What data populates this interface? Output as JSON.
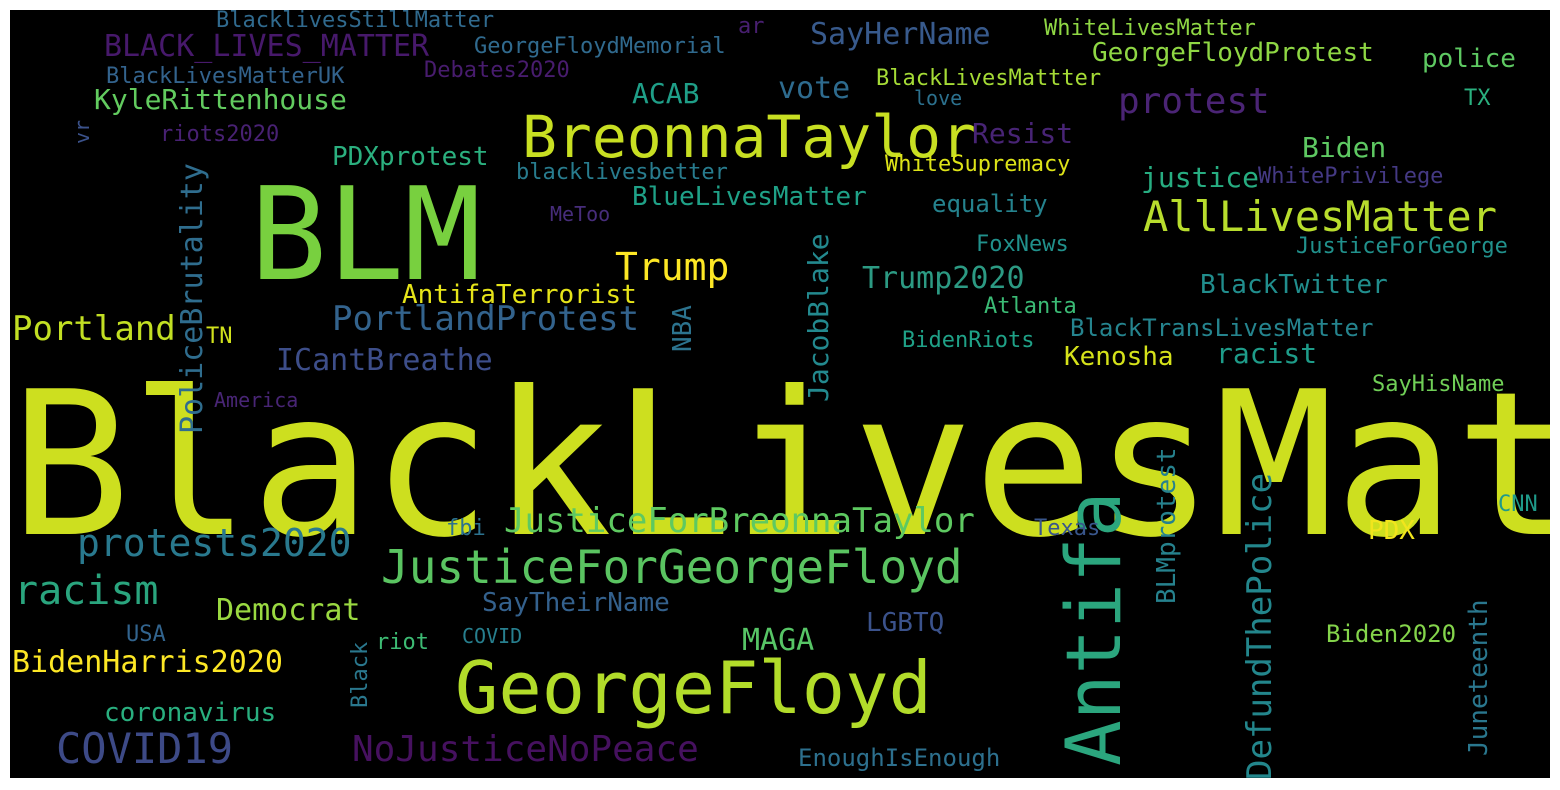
{
  "background": "#000000",
  "words": [
    {
      "text": "BlackLivesMatter",
      "color": "#cddf1f"
    },
    {
      "text": "BLM",
      "color": "#78d03f"
    },
    {
      "text": "GeorgeFloyd",
      "color": "#b2dc2a"
    },
    {
      "text": "BreonnaTaylor",
      "color": "#c8df22"
    },
    {
      "text": "Antifa",
      "color": "#2ba67e"
    },
    {
      "text": "JusticeForGeorgeFloyd",
      "color": "#5ac461"
    },
    {
      "text": "AllLivesMatter",
      "color": "#b8dd2d"
    },
    {
      "text": "NoJusticeNoPeace",
      "color": "#46115f"
    },
    {
      "text": "COVID19",
      "color": "#3d4a87"
    },
    {
      "text": "DefundThePolice",
      "color": "#23868c"
    },
    {
      "text": "JusticeForBreonnaTaylor",
      "color": "#5ec961"
    },
    {
      "text": "protests2020",
      "color": "#29798e"
    },
    {
      "text": "racism",
      "color": "#2aa57e"
    },
    {
      "text": "Trump",
      "color": "#fde725"
    },
    {
      "text": "PortlandProtest",
      "color": "#33638d"
    },
    {
      "text": "Portland",
      "color": "#c2df23"
    },
    {
      "text": "PoliceBrutality",
      "color": "#2f6d8e"
    },
    {
      "text": "protest",
      "color": "#4b2475"
    },
    {
      "text": "BLACK_LIVES_MATTER",
      "color": "#47196b"
    },
    {
      "text": "SayHerName",
      "color": "#385a8c"
    },
    {
      "text": "GeorgeFloydProtest",
      "color": "#8fd744"
    },
    {
      "text": "KyleRittenhouse",
      "color": "#62cb5f"
    },
    {
      "text": "ICantBreathe",
      "color": "#3d4e8a"
    },
    {
      "text": "JacobBlake",
      "color": "#23898e"
    },
    {
      "text": "Trump2020",
      "color": "#2c9a83"
    },
    {
      "text": "MAGA",
      "color": "#57c566"
    },
    {
      "text": "Democrat",
      "color": "#9ad941"
    },
    {
      "text": "BidenHarris2020",
      "color": "#fde725"
    },
    {
      "text": "vote",
      "color": "#2e6b8e"
    },
    {
      "text": "ACAB",
      "color": "#1f9f88"
    },
    {
      "text": "Resist",
      "color": "#482475"
    },
    {
      "text": "justice",
      "color": "#27ad81"
    },
    {
      "text": "Biden",
      "color": "#5ec962"
    },
    {
      "text": "BlueLivesMatter",
      "color": "#1fa187"
    },
    {
      "text": "AntifaTerrorist",
      "color": "#e6e419"
    },
    {
      "text": "PDXprotest",
      "color": "#2bb07f"
    },
    {
      "text": "BLMprotest",
      "color": "#26828e"
    },
    {
      "text": "Juneteenth",
      "color": "#2a778e"
    },
    {
      "text": "coronavirus",
      "color": "#29af7f"
    },
    {
      "text": "SayTheirName",
      "color": "#34618d"
    },
    {
      "text": "Kenosha",
      "color": "#d5e21a"
    },
    {
      "text": "racist",
      "color": "#1e9c89"
    },
    {
      "text": "BlackTwitter",
      "color": "#218e8d"
    },
    {
      "text": "BlackTransLivesMatter",
      "color": "#25848e"
    },
    {
      "text": "NBA",
      "color": "#2c738e"
    },
    {
      "text": "LGBTQ",
      "color": "#3b528b"
    },
    {
      "text": "PDX",
      "color": "#f1e51d"
    },
    {
      "text": "equality",
      "color": "#25838e"
    },
    {
      "text": "FoxNews",
      "color": "#21918c"
    },
    {
      "text": "BidenRiots",
      "color": "#1fa187"
    },
    {
      "text": "EnoughIsEnough",
      "color": "#2d708e"
    },
    {
      "text": "Biden2020",
      "color": "#84d44b"
    },
    {
      "text": "WhiteSupremacy",
      "color": "#dde318"
    },
    {
      "text": "BlackLivesMattter",
      "color": "#a5db36"
    },
    {
      "text": "WhiteLivesMatter",
      "color": "#8fd744"
    },
    {
      "text": "GeorgeFloydMemorial",
      "color": "#306a8e"
    },
    {
      "text": "BlacklivesStillMatter",
      "color": "#306a8e"
    },
    {
      "text": "BlackLivesMatterUK",
      "color": "#33638d"
    },
    {
      "text": "Debates2020",
      "color": "#481c6e"
    },
    {
      "text": "police",
      "color": "#5ec962"
    },
    {
      "text": "TX",
      "color": "#2ab07f"
    },
    {
      "text": "Texas",
      "color": "#39568c"
    },
    {
      "text": "CNN",
      "color": "#1f9a8a"
    },
    {
      "text": "SayHisName",
      "color": "#70cf57"
    },
    {
      "text": "JusticeForGeorge",
      "color": "#21918c"
    },
    {
      "text": "WhitePrivilege",
      "color": "#443983"
    },
    {
      "text": "Atlanta",
      "color": "#3bbb75"
    },
    {
      "text": "blacklivesbetter",
      "color": "#287c8e"
    },
    {
      "text": "MeToo",
      "color": "#472d7b"
    },
    {
      "text": "riots2020",
      "color": "#482173"
    },
    {
      "text": "America",
      "color": "#482575"
    },
    {
      "text": "TN",
      "color": "#d0e11c"
    },
    {
      "text": "fbi",
      "color": "#2c728e"
    },
    {
      "text": "USA",
      "color": "#32648e"
    },
    {
      "text": "Black",
      "color": "#2a788e"
    },
    {
      "text": "riot",
      "color": "#3dbc74"
    },
    {
      "text": "COVID",
      "color": "#277f8e"
    },
    {
      "text": "ar",
      "color": "#481f70"
    },
    {
      "text": "vr",
      "color": "#3b528b"
    },
    {
      "text": "love",
      "color": "#2c718e"
    }
  ]
}
